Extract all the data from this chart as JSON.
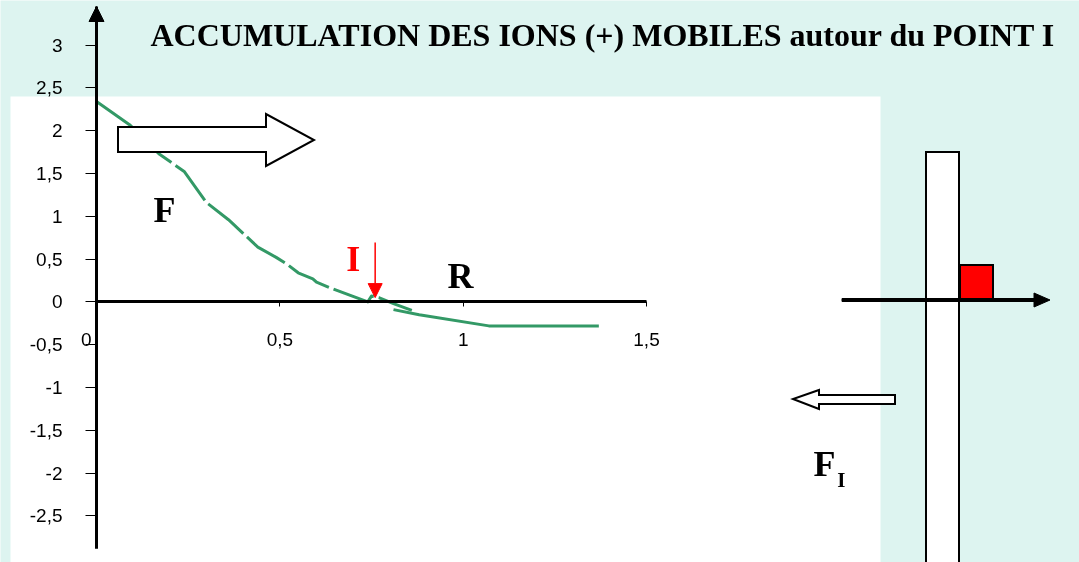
{
  "chart_data": {
    "type": "line",
    "title": "ACCUMULATION DES IONS (+) MOBILES autour du POINT I",
    "series": [
      {
        "color": "#339966",
        "line_style": "dashed",
        "x": [
          0,
          0.09,
          0.17,
          0.24,
          0.3,
          0.36,
          0.44,
          0.49,
          0.52,
          0.55,
          0.59,
          0.6,
          0.64,
          0.74,
          0.75,
          0.77,
          0.81,
          0.86
        ],
        "values": [
          2.34,
          2.07,
          1.73,
          1.52,
          1.16,
          0.96,
          0.64,
          0.52,
          0.44,
          0.34,
          0.27,
          0.23,
          0.16,
          0.0,
          0.07,
          0.05,
          -0.02,
          -0.1
        ]
      },
      {
        "color": "#339966",
        "line_style": "solid",
        "x": [
          0.81,
          0.88,
          1.07,
          1.37
        ],
        "values": [
          -0.09,
          -0.15,
          -0.28,
          -0.28
        ]
      }
    ],
    "xlim": [
      0,
      1.5
    ],
    "xticks": [
      0,
      {
        "value": 0.5,
        "label": "0,5"
      },
      1,
      {
        "value": 1.5,
        "label": "1,5"
      }
    ],
    "ylim": [
      -2.88,
      3.45
    ],
    "yticks": [
      3,
      {
        "value": 2.5,
        "label": "2,5"
      },
      2,
      {
        "value": 1.5,
        "label": "1,5"
      },
      1,
      {
        "value": 0.5,
        "label": "0,5"
      },
      0,
      {
        "value": -0.5,
        "label": "-0,5"
      },
      -1,
      {
        "value": -1.5,
        "label": "-1,5"
      },
      -2,
      {
        "value": -2.5,
        "label": "-2,5"
      }
    ],
    "grid": false,
    "annotations": [
      "F",
      {
        "text": "I",
        "x": 0.76,
        "y": 0.05
      },
      "R",
      "F$_{I}$"
    ]
  }
}
